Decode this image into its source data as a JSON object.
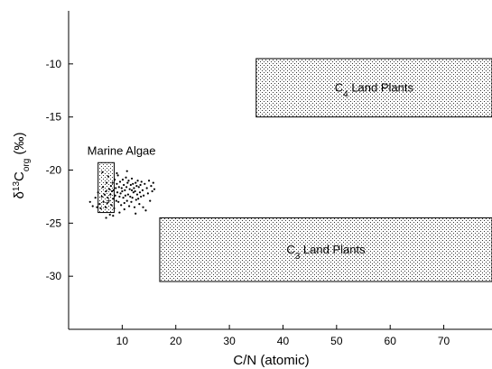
{
  "chart_data": {
    "type": "scatter",
    "xlabel": "C/N (atomic)",
    "ylabel": {
      "delta": "δ",
      "sup": "13",
      "main": "C",
      "sub": "org",
      "unit": " (‰)"
    },
    "xlim": [
      0,
      79
    ],
    "ylim": [
      -35,
      -5
    ],
    "y_inverted_top": true,
    "x_ticks": [
      10,
      20,
      30,
      40,
      50,
      60,
      70
    ],
    "y_ticks": [
      -10,
      -15,
      -20,
      -25,
      -30
    ],
    "grid": false,
    "regions": [
      {
        "id": "c4",
        "label_main": "C",
        "label_sub": "4",
        "label_rest": " Land Plants",
        "x": [
          35,
          79
        ],
        "y": [
          -15,
          -9.5
        ],
        "pattern": "stipple"
      },
      {
        "id": "c3",
        "label_main": "C",
        "label_sub": "3",
        "label_rest": " Land Plants",
        "x": [
          17,
          79
        ],
        "y": [
          -30.5,
          -24.5
        ],
        "pattern": "stipple"
      },
      {
        "id": "marine",
        "label_main": "Marine Algae",
        "label_sub": "",
        "label_rest": "",
        "x": [
          5.5,
          8.5
        ],
        "y": [
          -24,
          -19.3
        ],
        "pattern": "stipple"
      }
    ],
    "points": [
      [
        4.0,
        -23.0
      ],
      [
        4.5,
        -23.4
      ],
      [
        5.0,
        -22.6
      ],
      [
        5.3,
        -23.5
      ],
      [
        5.5,
        -22.1
      ],
      [
        5.8,
        -23.2
      ],
      [
        6.0,
        -23.6
      ],
      [
        6.2,
        -22.5
      ],
      [
        6.4,
        -21.6
      ],
      [
        6.5,
        -23.0
      ],
      [
        6.7,
        -22.3
      ],
      [
        6.9,
        -23.5
      ],
      [
        7.0,
        -22.0
      ],
      [
        7.1,
        -21.2
      ],
      [
        7.2,
        -23.1
      ],
      [
        7.3,
        -22.6
      ],
      [
        7.4,
        -20.6
      ],
      [
        7.5,
        -22.9
      ],
      [
        7.6,
        -21.8
      ],
      [
        7.7,
        -24.2
      ],
      [
        7.8,
        -22.3
      ],
      [
        7.9,
        -21.5
      ],
      [
        8.0,
        -23.3
      ],
      [
        8.1,
        -22.0
      ],
      [
        8.2,
        -21.2
      ],
      [
        8.3,
        -22.7
      ],
      [
        8.4,
        -21.9
      ],
      [
        8.5,
        -23.6
      ],
      [
        8.6,
        -20.9
      ],
      [
        8.7,
        -22.4
      ],
      [
        8.8,
        -21.7
      ],
      [
        8.9,
        -22.9
      ],
      [
        9.0,
        -21.3
      ],
      [
        9.1,
        -22.1
      ],
      [
        9.2,
        -20.5
      ],
      [
        9.3,
        -23.0
      ],
      [
        9.4,
        -21.6
      ],
      [
        9.5,
        -22.5
      ],
      [
        9.6,
        -21.1
      ],
      [
        9.7,
        -22.2
      ],
      [
        9.8,
        -23.3
      ],
      [
        9.9,
        -21.7
      ],
      [
        10.0,
        -22.0
      ],
      [
        10.1,
        -20.9
      ],
      [
        10.2,
        -22.6
      ],
      [
        10.3,
        -21.4
      ],
      [
        10.4,
        -23.1
      ],
      [
        10.5,
        -21.9
      ],
      [
        10.6,
        -22.4
      ],
      [
        10.7,
        -20.7
      ],
      [
        10.8,
        -21.6
      ],
      [
        10.9,
        -22.9
      ],
      [
        11.0,
        -21.2
      ],
      [
        11.1,
        -22.3
      ],
      [
        11.2,
        -21.0
      ],
      [
        11.3,
        -23.4
      ],
      [
        11.4,
        -21.8
      ],
      [
        11.5,
        -22.5
      ],
      [
        11.6,
        -21.4
      ],
      [
        11.7,
        -23.0
      ],
      [
        11.8,
        -21.9
      ],
      [
        11.9,
        -22.6
      ],
      [
        12.0,
        -21.3
      ],
      [
        12.1,
        -22.1
      ],
      [
        12.2,
        -21.7
      ],
      [
        12.3,
        -23.5
      ],
      [
        12.4,
        -22.0
      ],
      [
        12.5,
        -21.2
      ],
      [
        12.6,
        -22.8
      ],
      [
        12.7,
        -21.5
      ],
      [
        12.8,
        -22.3
      ],
      [
        12.9,
        -21.0
      ],
      [
        13.0,
        -22.7
      ],
      [
        13.1,
        -21.6
      ],
      [
        13.2,
        -23.2
      ],
      [
        13.3,
        -22.1
      ],
      [
        13.4,
        -21.4
      ],
      [
        13.5,
        -22.5
      ],
      [
        13.6,
        -21.1
      ],
      [
        13.8,
        -21.9
      ],
      [
        14.0,
        -22.4
      ],
      [
        14.2,
        -21.3
      ],
      [
        14.4,
        -23.8
      ],
      [
        14.6,
        -21.7
      ],
      [
        14.8,
        -22.2
      ],
      [
        15.0,
        -21.0
      ],
      [
        15.2,
        -22.9
      ],
      [
        15.4,
        -21.5
      ],
      [
        15.6,
        -22.0
      ],
      [
        15.8,
        -21.2
      ],
      [
        16.0,
        -21.8
      ],
      [
        9.5,
        -24.0
      ],
      [
        10.4,
        -23.7
      ],
      [
        8.3,
        -24.3
      ],
      [
        11.8,
        -20.8
      ],
      [
        9.0,
        -20.3
      ],
      [
        12.5,
        -24.1
      ],
      [
        7.0,
        -24.5
      ],
      [
        13.9,
        -23.5
      ],
      [
        6.3,
        -20.2
      ],
      [
        10.9,
        -20.1
      ]
    ]
  }
}
